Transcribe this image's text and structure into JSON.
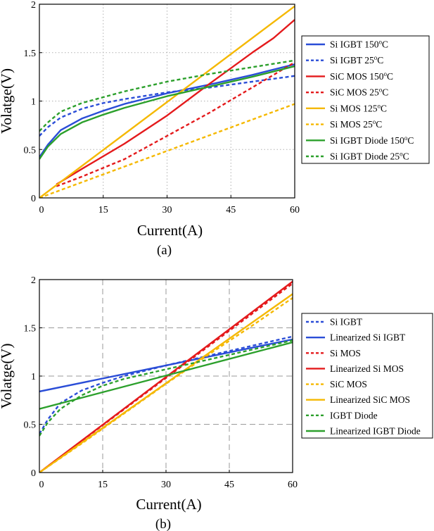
{
  "chart_data": [
    {
      "type": "line",
      "panel": "(a)",
      "caption": "(a)",
      "xlabel": "Current(A)",
      "ylabel": "Volatge(V)",
      "xlim": [
        0,
        60
      ],
      "ylim": [
        0,
        2
      ],
      "xticks": [
        0,
        15,
        30,
        45,
        60
      ],
      "xtick_labels": [
        "0",
        "15",
        "30",
        "45",
        "60"
      ],
      "yticks": [
        0,
        0.5,
        1,
        1.5,
        2
      ],
      "ytick_labels": [
        "0",
        "0.5",
        "1",
        "1.5",
        "2"
      ],
      "grid": "dotted",
      "legend_position": "right",
      "series": [
        {
          "name": "Si IGBT 150oC",
          "label_main": "Si IGBT 150",
          "label_sup": "o",
          "label_tail": "C",
          "color": "#2a4dd7",
          "dash": "solid",
          "x": [
            0,
            2,
            5,
            10,
            15,
            20,
            30,
            40,
            50,
            60
          ],
          "y": [
            0.42,
            0.55,
            0.7,
            0.82,
            0.9,
            0.97,
            1.08,
            1.17,
            1.27,
            1.38
          ]
        },
        {
          "name": "Si IGBT 25oC",
          "label_main": "Si IGBT 25",
          "label_sup": "o",
          "label_tail": "C",
          "color": "#2a4dd7",
          "dash": "dashed",
          "x": [
            0,
            2,
            5,
            10,
            15,
            20,
            30,
            40,
            50,
            60
          ],
          "y": [
            0.64,
            0.73,
            0.83,
            0.92,
            0.98,
            1.02,
            1.09,
            1.14,
            1.2,
            1.26
          ]
        },
        {
          "name": "SiC MOS 150oC",
          "label_main": "SiC MOS 150",
          "label_sup": "o",
          "label_tail": "C",
          "color": "#e41a1c",
          "dash": "solid",
          "x": [
            4,
            10,
            20,
            30,
            40,
            50,
            55,
            60
          ],
          "y": [
            0.14,
            0.3,
            0.56,
            0.85,
            1.18,
            1.5,
            1.65,
            1.84
          ]
        },
        {
          "name": "SiC MOS 25oC",
          "label_main": "SiC MOS 25",
          "label_sup": "o",
          "label_tail": "C",
          "color": "#e41a1c",
          "dash": "dashed",
          "x": [
            4,
            10,
            20,
            30,
            40,
            50,
            60
          ],
          "y": [
            0.12,
            0.22,
            0.4,
            0.64,
            0.88,
            1.14,
            1.4
          ]
        },
        {
          "name": "Si MOS 125oC",
          "label_main": "Si MOS 125",
          "label_sup": "o",
          "label_tail": "C",
          "color": "#f5b800",
          "dash": "solid",
          "x": [
            0,
            60
          ],
          "y": [
            0.0,
            1.98
          ]
        },
        {
          "name": "Si MOS 25oC",
          "label_main": "Si MOS 25",
          "label_sup": "o",
          "label_tail": "C",
          "color": "#f5b800",
          "dash": "dashed",
          "x": [
            0,
            60
          ],
          "y": [
            0.0,
            0.97
          ]
        },
        {
          "name": "Si IGBT Diode 150oC",
          "label_main": "Si IGBT Diode 150",
          "label_sup": "o",
          "label_tail": "C",
          "color": "#2ca02c",
          "dash": "solid",
          "x": [
            0,
            2,
            5,
            10,
            15,
            20,
            30,
            40,
            50,
            60
          ],
          "y": [
            0.4,
            0.53,
            0.66,
            0.78,
            0.86,
            0.93,
            1.05,
            1.15,
            1.25,
            1.36
          ]
        },
        {
          "name": "Si IGBT Diode 25oC",
          "label_main": "Si IGBT Diode 25",
          "label_sup": "o",
          "label_tail": "C",
          "color": "#2ca02c",
          "dash": "dashed",
          "x": [
            0,
            2,
            5,
            10,
            15,
            20,
            30,
            40,
            50,
            60
          ],
          "y": [
            0.69,
            0.78,
            0.89,
            0.98,
            1.04,
            1.1,
            1.2,
            1.28,
            1.35,
            1.42
          ]
        }
      ]
    },
    {
      "type": "line",
      "panel": "(b)",
      "caption": "(b)",
      "xlabel": "Current(A)",
      "ylabel": "Volatge(V)",
      "xlim": [
        0,
        60
      ],
      "ylim": [
        0,
        2
      ],
      "xticks": [
        0,
        15,
        30,
        45,
        60
      ],
      "xtick_labels": [
        "0",
        "15",
        "30",
        "45",
        "60"
      ],
      "yticks": [
        0,
        0.5,
        1,
        1.5,
        2
      ],
      "ytick_labels": [
        "0",
        "0.5",
        "1",
        "1.5",
        "2"
      ],
      "grid": "dashed",
      "legend_position": "right",
      "series": [
        {
          "name": "Si IGBT",
          "label_main": "Si IGBT",
          "color": "#2a4dd7",
          "dash": "dashed",
          "x": [
            0,
            2,
            5,
            10,
            15,
            20,
            30,
            40,
            50,
            60
          ],
          "y": [
            0.4,
            0.55,
            0.72,
            0.85,
            0.93,
            1.0,
            1.11,
            1.21,
            1.31,
            1.41
          ]
        },
        {
          "name": "Linearized Si IGBT",
          "label_main": "Linearized Si IGBT",
          "color": "#2a4dd7",
          "dash": "solid",
          "x": [
            0,
            60
          ],
          "y": [
            0.84,
            1.38
          ]
        },
        {
          "name": "Si MOS",
          "label_main": "Si MOS",
          "color": "#e41a1c",
          "dash": "dashed",
          "x": [
            0,
            60
          ],
          "y": [
            0.0,
            1.96
          ]
        },
        {
          "name": "Linearized Si MOS",
          "label_main": "Linearized Si MOS",
          "color": "#e41a1c",
          "dash": "solid",
          "x": [
            0,
            60
          ],
          "y": [
            0.0,
            1.98
          ]
        },
        {
          "name": "SiC MOS",
          "label_main": "SiC MOS",
          "color": "#f5b800",
          "dash": "dashed",
          "x": [
            0,
            10,
            20,
            30,
            40,
            50,
            60
          ],
          "y": [
            0.0,
            0.3,
            0.61,
            0.92,
            1.22,
            1.51,
            1.81
          ]
        },
        {
          "name": "Linearized SiC MOS",
          "label_main": "Linearized SiC MOS",
          "color": "#f5b800",
          "dash": "solid",
          "x": [
            0,
            60
          ],
          "y": [
            0.0,
            1.85
          ]
        },
        {
          "name": "IGBT Diode",
          "label_main": "IGBT Diode",
          "color": "#2ca02c",
          "dash": "dashed",
          "x": [
            0,
            2,
            5,
            10,
            15,
            20,
            30,
            40,
            50,
            60
          ],
          "y": [
            0.38,
            0.52,
            0.66,
            0.8,
            0.9,
            0.97,
            1.07,
            1.17,
            1.27,
            1.37
          ]
        },
        {
          "name": "Linearized IGBT Diode",
          "label_main": "Linearized IGBT Diode",
          "color": "#2ca02c",
          "dash": "solid",
          "x": [
            0,
            60
          ],
          "y": [
            0.66,
            1.35
          ]
        }
      ]
    }
  ]
}
